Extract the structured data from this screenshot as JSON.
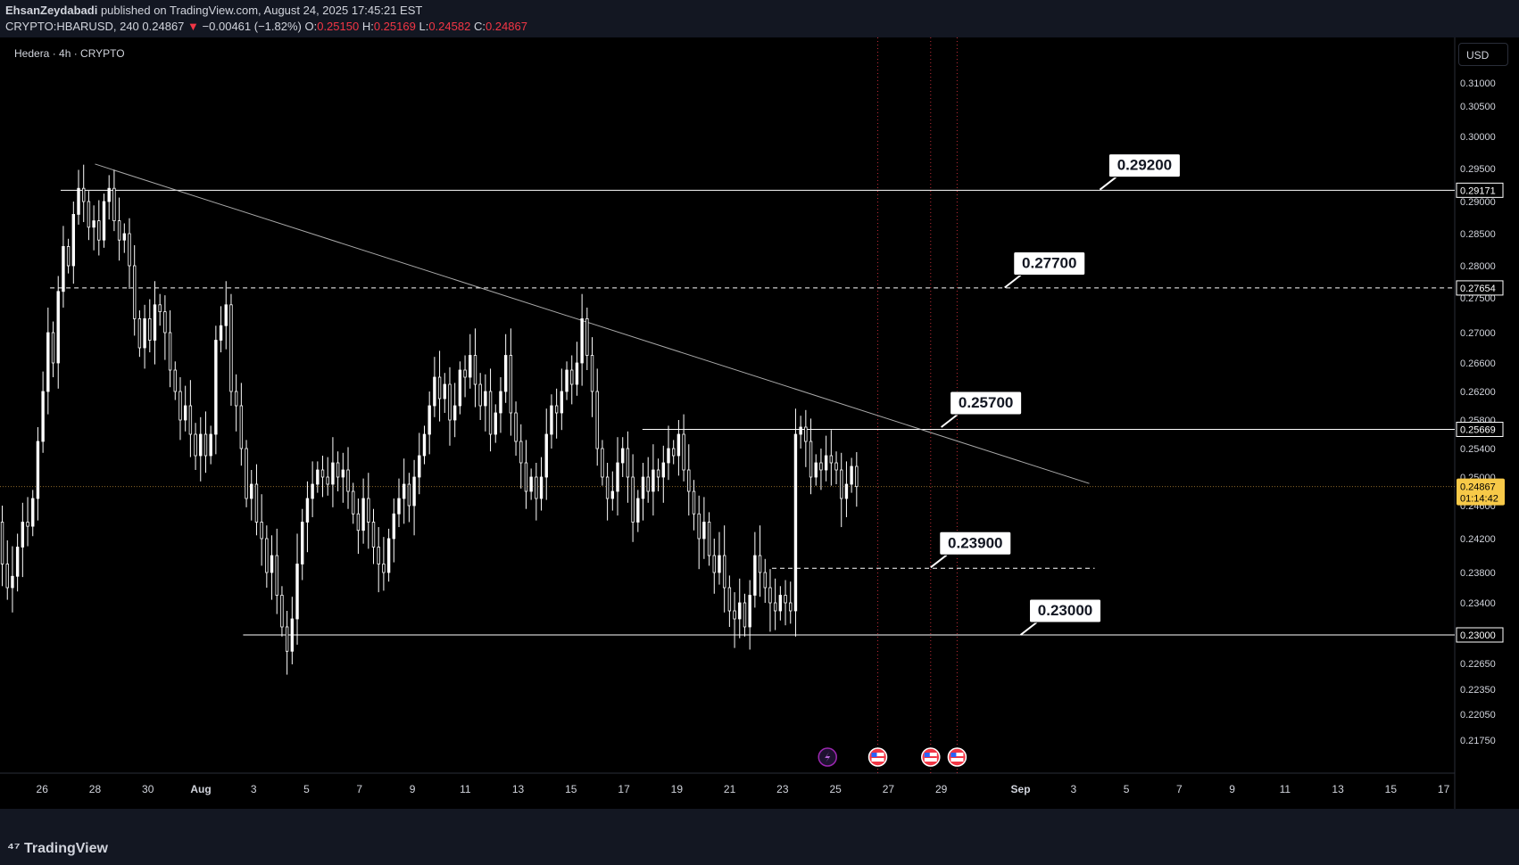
{
  "header": {
    "author": "EhsanZeydabadi",
    "published": "published on TradingView.com, August 24, 2025 17:45:21 EST",
    "symbol": "CRYPTO:HBARUSD, 240",
    "last": "0.24867",
    "arrow": "▼",
    "change": "−0.00461 (−1.82%)",
    "ohlc": {
      "o_label": "O:",
      "o": "0.25150",
      "h_label": "H:",
      "h": "0.25169",
      "l_label": "L:",
      "l": "0.24582",
      "c_label": "C:",
      "c": "0.24867"
    }
  },
  "legend_title": "Hedera · 4h · CRYPTO",
  "currency": "USD",
  "brand": "TradingView",
  "countdown": "01:14:42",
  "colors": {
    "background": "#000000",
    "panel": "#131722",
    "grid_text": "#d1d4dc",
    "candle": "#ffffff",
    "current_price": "#f7c948",
    "event_line": "#f23645",
    "session_line": "#c8963c"
  },
  "event_icons": [
    "lightning-icon",
    "us-flag-icon",
    "us-flag-icon",
    "us-flag-icon"
  ],
  "chart_data": {
    "type": "candlestick",
    "timeframe": "4h",
    "y_axis_ticks": [
      "0.31000",
      "0.30500",
      "0.30000",
      "0.29500",
      "0.29000",
      "0.28500",
      "0.28000",
      "0.27500",
      "0.27000",
      "0.26600",
      "0.26200",
      "0.25800",
      "0.25400",
      "0.25000",
      "0.24600",
      "0.24200",
      "0.23800",
      "0.23400",
      "0.23000",
      "0.22650",
      "0.22350",
      "0.22050",
      "0.21750"
    ],
    "x_axis_ticks": [
      "26",
      "28",
      "30",
      "Aug",
      "3",
      "5",
      "7",
      "9",
      "11",
      "13",
      "15",
      "17",
      "19",
      "21",
      "23",
      "25",
      "27",
      "29",
      "Sep",
      "3",
      "5",
      "7",
      "9",
      "11",
      "13",
      "15",
      "17"
    ],
    "x_tick_days": [
      -6,
      -4,
      -2,
      0,
      2,
      4,
      6,
      8,
      10,
      12,
      14,
      16,
      18,
      20,
      22,
      24,
      26,
      28,
      31,
      33,
      35,
      37,
      39,
      41,
      43,
      45,
      47
    ],
    "current_price": 0.24867,
    "price_labels": [
      {
        "value": 0.29171,
        "text": "0.29171"
      },
      {
        "value": 0.27654,
        "text": "0.27654"
      },
      {
        "value": 0.25669,
        "text": "0.25669"
      },
      {
        "value": 0.23,
        "text": "0.23000"
      }
    ],
    "horizontal_levels": [
      {
        "value": 0.29171,
        "start_day": -5.3,
        "style": "solid"
      },
      {
        "value": 0.27654,
        "start_day": -5.7,
        "style": "dashed"
      },
      {
        "value": 0.25669,
        "start_day": 16.7,
        "style": "solid"
      },
      {
        "value": 0.2385,
        "start_day": 21.6,
        "end_day": 33.8,
        "style": "dashed"
      },
      {
        "value": 0.23,
        "start_day": 1.6,
        "style": "solid"
      }
    ],
    "trendline": {
      "start": {
        "day": -4.0,
        "price": 0.2957
      },
      "end": {
        "day": 33.6,
        "price": 0.2491
      }
    },
    "annotations": [
      {
        "text": "0.29200",
        "price": 0.2918,
        "day": 34.0
      },
      {
        "text": "0.27700",
        "price": 0.2766,
        "day": 30.4
      },
      {
        "text": "0.25700",
        "price": 0.257,
        "day": 28.0
      },
      {
        "text": "0.23900",
        "price": 0.2386,
        "day": 27.6
      },
      {
        "text": "0.23000",
        "price": 0.23,
        "day": 31.0
      }
    ],
    "event_days": [
      25.6,
      27.6,
      28.6
    ],
    "event_icon_days": [
      23.7,
      25.6,
      27.6,
      28.6
    ],
    "closes": [
      0.244,
      0.239,
      0.236,
      0.2375,
      0.241,
      0.244,
      0.2435,
      0.247,
      0.255,
      0.262,
      0.27,
      0.266,
      0.276,
      0.283,
      0.28,
      0.288,
      0.292,
      0.29,
      0.286,
      0.287,
      0.284,
      0.29,
      0.292,
      0.287,
      0.284,
      0.285,
      0.28,
      0.272,
      0.268,
      0.272,
      0.269,
      0.274,
      0.273,
      0.27,
      0.265,
      0.262,
      0.258,
      0.26,
      0.256,
      0.253,
      0.256,
      0.253,
      0.256,
      0.269,
      0.271,
      0.274,
      0.262,
      0.26,
      0.254,
      0.247,
      0.249,
      0.244,
      0.242,
      0.238,
      0.24,
      0.235,
      0.231,
      0.228,
      0.232,
      0.239,
      0.244,
      0.247,
      0.249,
      0.251,
      0.25,
      0.249,
      0.252,
      0.25,
      0.251,
      0.248,
      0.245,
      0.243,
      0.247,
      0.244,
      0.241,
      0.239,
      0.238,
      0.242,
      0.245,
      0.247,
      0.249,
      0.246,
      0.25,
      0.253,
      0.256,
      0.26,
      0.264,
      0.261,
      0.263,
      0.258,
      0.26,
      0.265,
      0.264,
      0.267,
      0.263,
      0.26,
      0.262,
      0.256,
      0.259,
      0.262,
      0.267,
      0.259,
      0.255,
      0.252,
      0.248,
      0.25,
      0.247,
      0.25,
      0.256,
      0.26,
      0.259,
      0.262,
      0.265,
      0.263,
      0.266,
      0.272,
      0.267,
      0.262,
      0.254,
      0.25,
      0.247,
      0.248,
      0.252,
      0.254,
      0.25,
      0.244,
      0.247,
      0.25,
      0.248,
      0.251,
      0.25,
      0.252,
      0.254,
      0.253,
      0.256,
      0.251,
      0.248,
      0.245,
      0.242,
      0.244,
      0.24,
      0.238,
      0.24,
      0.236,
      0.233,
      0.232,
      0.234,
      0.231,
      0.235,
      0.24,
      0.238,
      0.236,
      0.234,
      0.233,
      0.235,
      0.234,
      0.233,
      0.256,
      0.257,
      0.255,
      0.25,
      0.252,
      0.251,
      0.253,
      0.252,
      0.251,
      0.247,
      0.249,
      0.2515,
      0.24867
    ]
  }
}
